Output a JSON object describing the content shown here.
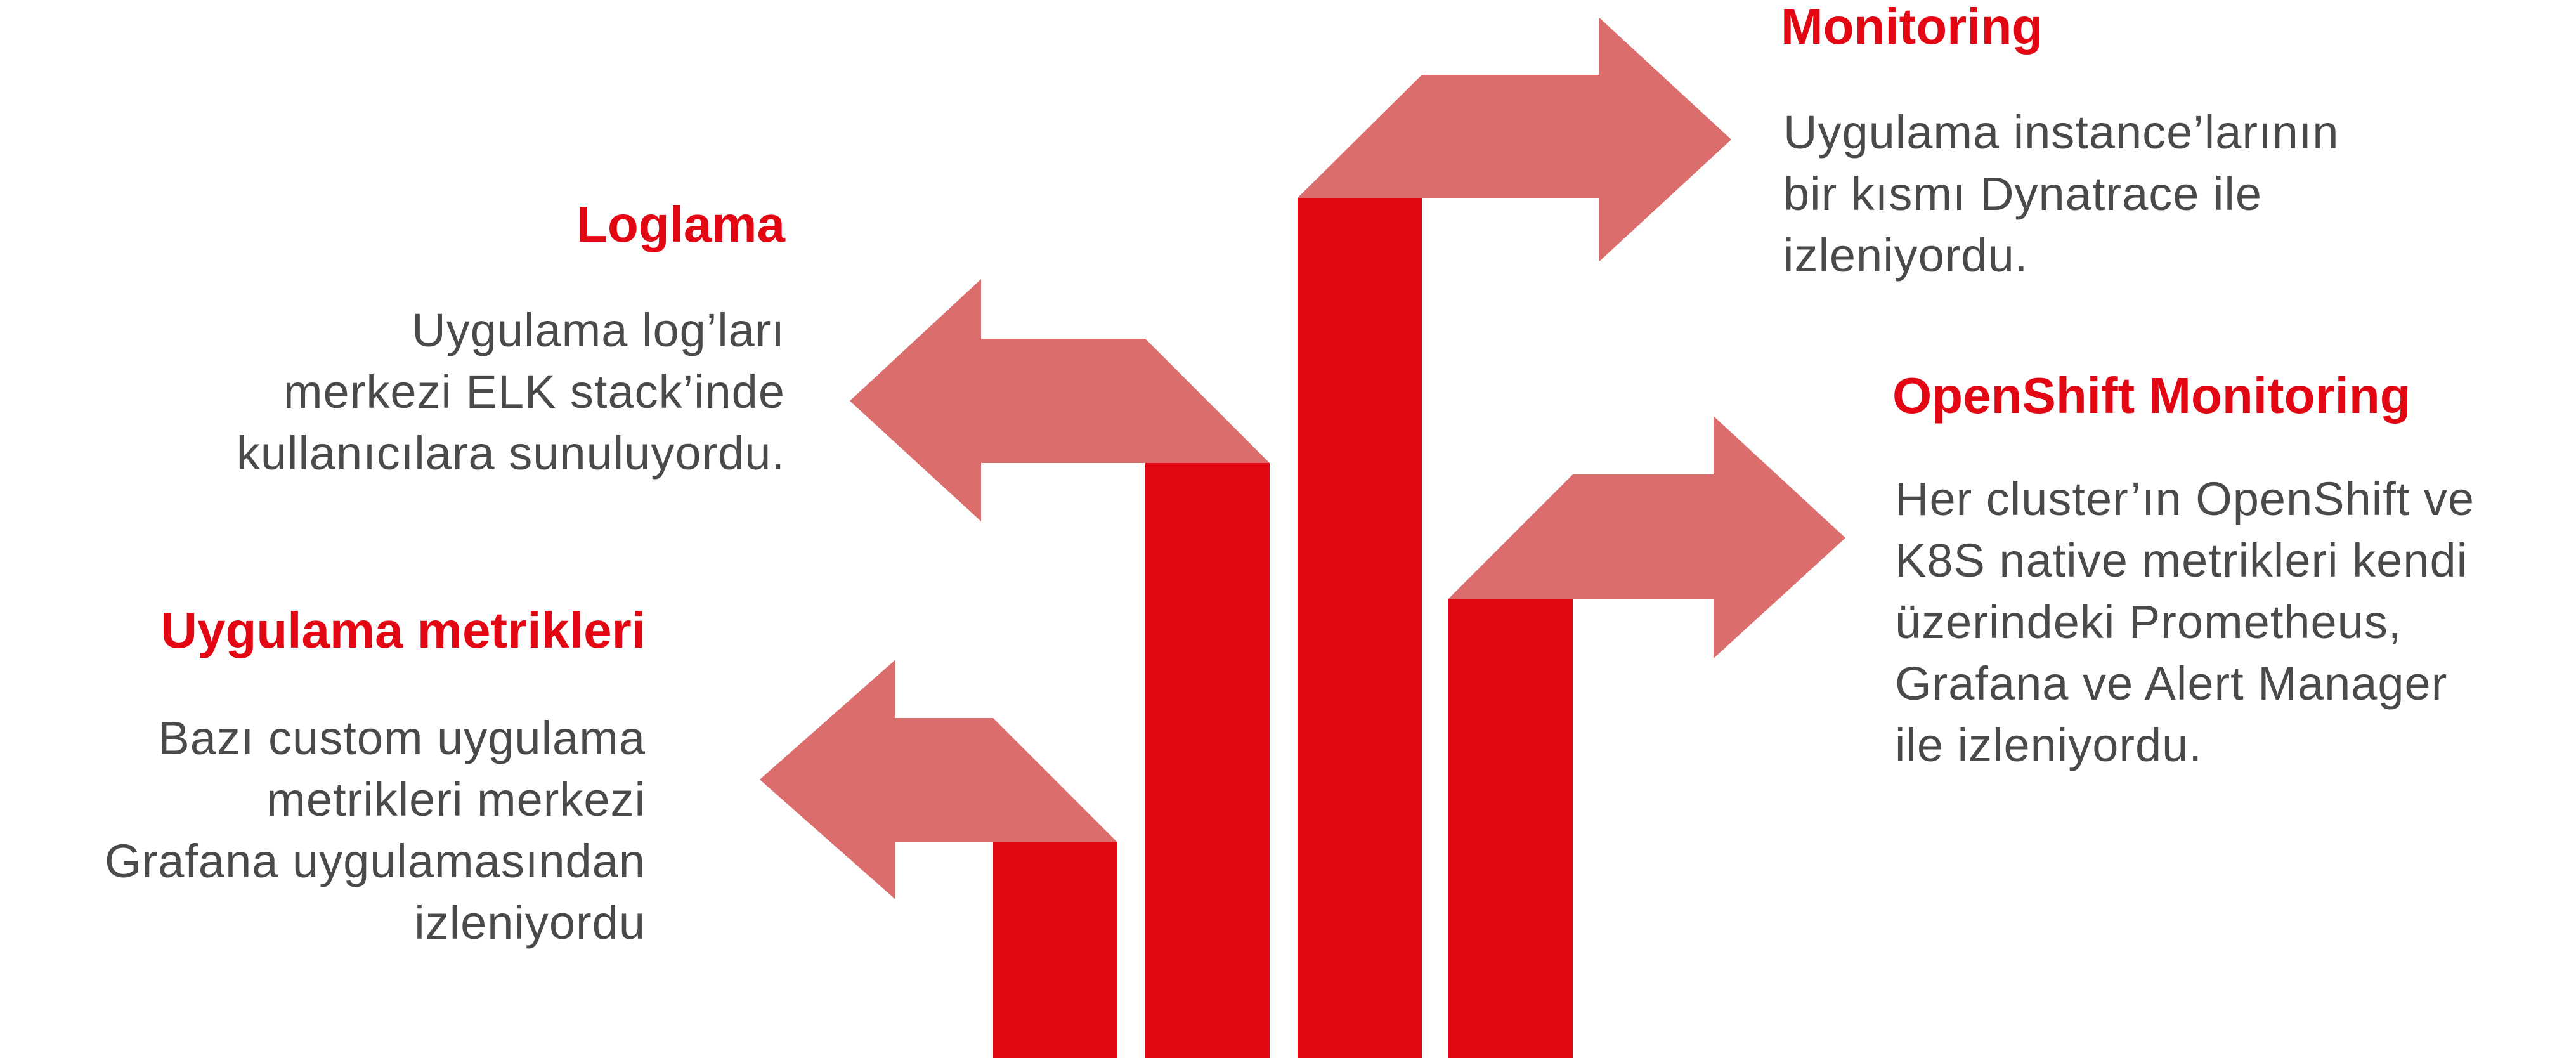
{
  "colors": {
    "bar": "#e30613",
    "arrow": "#dc6d6d",
    "heading": "#e30613",
    "text": "#4a4a4a",
    "background": "#ffffff"
  },
  "sections": {
    "uygulama_metrikleri": {
      "title": "Uygulama metrikleri",
      "lines": [
        "Bazı custom uygulama",
        "metrikleri merkezi",
        "Grafana uygulamasından",
        "izleniyordu"
      ]
    },
    "loglama": {
      "title": "Loglama",
      "lines": [
        "Uygulama log’ları",
        "merkezi ELK stack’inde",
        "kullanıcılara sunuluyordu."
      ]
    },
    "monitoring": {
      "title": "Monitoring",
      "lines": [
        "Uygulama instance’larının",
        "bir kısmı Dynatrace ile",
        "izleniyordu."
      ]
    },
    "openshift_monitoring": {
      "title": "OpenShift Monitoring",
      "lines": [
        "Her cluster’ın OpenShift ve",
        "K8S native metrikleri kendi",
        "üzerindeki  Prometheus,",
        "Grafana ve Alert Manager",
        "ile izleniyordu."
      ]
    }
  },
  "diagram": {
    "arrows": [
      {
        "section": "uygulama_metrikleri",
        "direction": "left"
      },
      {
        "section": "loglama",
        "direction": "left"
      },
      {
        "section": "monitoring",
        "direction": "right"
      },
      {
        "section": "openshift_monitoring",
        "direction": "right"
      }
    ]
  }
}
